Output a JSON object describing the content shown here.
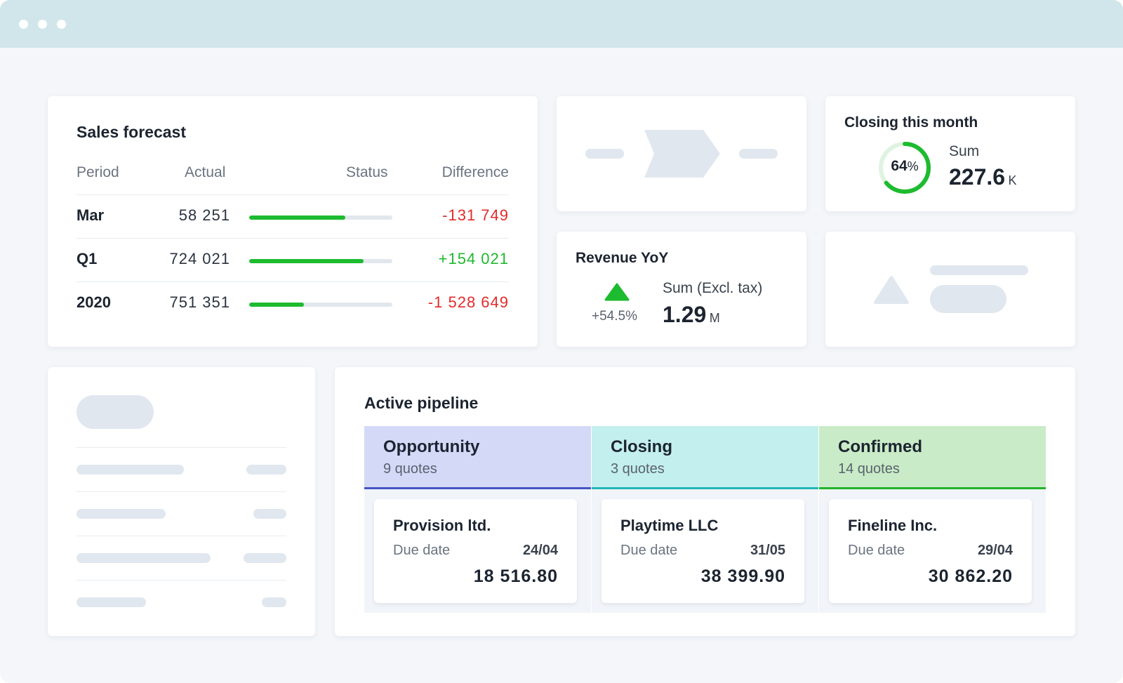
{
  "sales_forecast": {
    "title": "Sales forecast",
    "columns": [
      "Period",
      "Actual",
      "Status",
      "Difference"
    ],
    "rows": [
      {
        "period": "Mar",
        "actual": "58 251",
        "status_fraction": 0.67,
        "difference": "-131 749",
        "difference_color": "#e32b2b"
      },
      {
        "period": "Q1",
        "actual": "724 021",
        "status_fraction": 0.8,
        "difference": "+154 021",
        "difference_color": "#1fb82f"
      },
      {
        "period": "2020",
        "actual": "751 351",
        "status_fraction": 0.38,
        "difference": "-1 528 649",
        "difference_color": "#e32b2b"
      }
    ]
  },
  "closing_this_month": {
    "title": "Closing this month",
    "percent": 64,
    "percent_label": "64",
    "percent_sign": "%",
    "sum_label": "Sum",
    "sum_value": "227.6",
    "sum_unit": "K"
  },
  "revenue_yoy": {
    "title": "Revenue YoY",
    "change": "+54.5%",
    "sum_label": "Sum (Excl. tax)",
    "sum_value": "1.29",
    "sum_unit": "M"
  },
  "active_pipeline": {
    "title": "Active pipeline",
    "columns": [
      {
        "name": "Opportunity",
        "count": "9 quotes",
        "color": "#d4d9f8",
        "accent": "#4654c4",
        "deal": {
          "company": "Provision ltd.",
          "due_label": "Due date",
          "due_date": "24/04",
          "amount": "18 516.80"
        }
      },
      {
        "name": "Closing",
        "count": "3 quotes",
        "color": "#c3efee",
        "accent": "#1fb8b5",
        "deal": {
          "company": "Playtime LLC",
          "due_label": "Due date",
          "due_date": "31/05",
          "amount": "38 399.90"
        }
      },
      {
        "name": "Confirmed",
        "count": "14 quotes",
        "color": "#c9ebc7",
        "accent": "#22b32b",
        "deal": {
          "company": "Fineline Inc.",
          "due_label": "Due date",
          "due_date": "29/04",
          "amount": "30 862.20"
        }
      }
    ]
  },
  "colors": {
    "titlebar": "#d0e6ea",
    "background": "#f4f6f9",
    "progress_green": "#1dbb2f",
    "negative": "#e32b2b",
    "positive": "#1fb82f",
    "placeholder": "#e1e7ef"
  }
}
